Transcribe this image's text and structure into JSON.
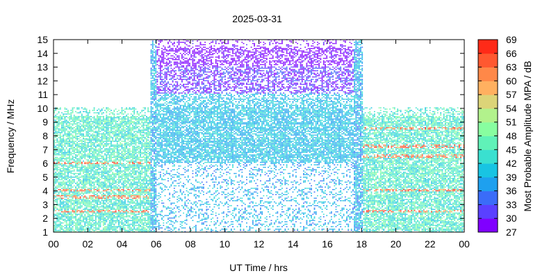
{
  "chart_data": {
    "type": "heatmap",
    "title": "2025-03-31",
    "xlabel": "UT Time / hrs",
    "ylabel": "Frequency / MHz",
    "colorbar_label": "Most Probable Amplitude MPA / dB",
    "xlim": [
      0,
      24
    ],
    "ylim": [
      1,
      15
    ],
    "x_ticks": [
      "00",
      "02",
      "04",
      "06",
      "08",
      "10",
      "12",
      "14",
      "16",
      "18",
      "20",
      "22",
      "00"
    ],
    "y_ticks": [
      "1",
      "2",
      "3",
      "4",
      "5",
      "6",
      "7",
      "8",
      "9",
      "10",
      "11",
      "12",
      "13",
      "14",
      "15"
    ],
    "colorbar_ticks": [
      "27",
      "30",
      "33",
      "36",
      "39",
      "42",
      "45",
      "48",
      "51",
      "54",
      "57",
      "60",
      "63",
      "66",
      "69"
    ],
    "colorbar_range": [
      27,
      69
    ],
    "colormap": [
      "#8000ff",
      "#5a40ff",
      "#3a6cf8",
      "#1ea0ef",
      "#18c4e3",
      "#3ae0d0",
      "#60f2b8",
      "#88fea0",
      "#b2f28c",
      "#dcd478",
      "#ffb060",
      "#ff8848",
      "#ff5830",
      "#ff2a18",
      "#ff0000"
    ],
    "grid": false,
    "description_regions": [
      {
        "t_start": 0.0,
        "t_end": 5.6,
        "f_max": 10.0,
        "mpa_typical": 45,
        "strong_bands_mhz": [
          2.5,
          3.5,
          4.0,
          6.0
        ]
      },
      {
        "t_start": 5.6,
        "t_end": 18.0,
        "f_max": 15.0,
        "mpa_typical": 39,
        "upper_mpa": 31
      },
      {
        "t_start": 18.0,
        "t_end": 24.0,
        "f_max": 10.0,
        "mpa_typical": 45,
        "strong_bands_mhz": [
          2.5,
          4.0,
          6.5,
          7.2,
          8.5
        ]
      }
    ]
  }
}
